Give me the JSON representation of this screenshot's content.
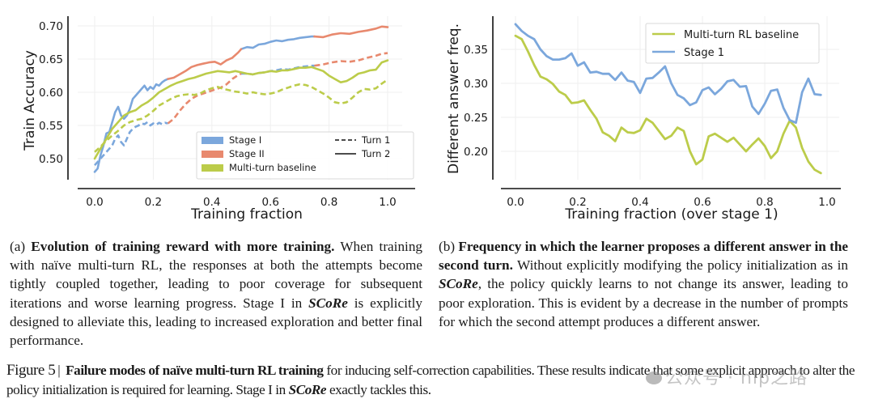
{
  "chart_data": [
    {
      "id": "a",
      "type": "line",
      "title": "",
      "xlabel": "Training fraction",
      "ylabel": "Train Accuracy",
      "xlim": [
        -0.06,
        1.03
      ],
      "ylim": [
        0.47,
        0.715
      ],
      "xticks": [
        "0.0",
        "0.2",
        "0.4",
        "0.6",
        "0.8",
        "1.0"
      ],
      "xtick_values": [
        0.0,
        0.2,
        0.4,
        0.6,
        0.8,
        1.0
      ],
      "yticks": [
        "0.50",
        "0.55",
        "0.60",
        "0.65",
        "0.70"
      ],
      "ytick_values": [
        0.5,
        0.55,
        0.6,
        0.65,
        0.7
      ],
      "grid": true,
      "legend": {
        "placement": "lower-right",
        "color_entries": [
          {
            "label": "Stage I",
            "color": "#7ba7dc"
          },
          {
            "label": "Stage II",
            "color": "#e8896e"
          },
          {
            "label": "Multi-turn baseline",
            "color": "#bccc4a"
          }
        ],
        "style_entries": [
          {
            "label": "Turn 1",
            "style": "dashed"
          },
          {
            "label": "Turn 2",
            "style": "solid"
          }
        ]
      },
      "series": [
        {
          "name": "Stage I - Turn 2",
          "color": "#7ba7dc",
          "style": "solid",
          "x": [
            0.0,
            0.01,
            0.02,
            0.03,
            0.04,
            0.05,
            0.06,
            0.07,
            0.08,
            0.09,
            0.1,
            0.11,
            0.12,
            0.13,
            0.14,
            0.15,
            0.16,
            0.17,
            0.18,
            0.19,
            0.2,
            0.21,
            0.22,
            0.23,
            0.24,
            0.25
          ],
          "y": [
            0.48,
            0.485,
            0.505,
            0.52,
            0.538,
            0.54,
            0.555,
            0.57,
            0.578,
            0.565,
            0.56,
            0.565,
            0.575,
            0.59,
            0.595,
            0.6,
            0.605,
            0.61,
            0.603,
            0.608,
            0.605,
            0.612,
            0.61,
            0.615,
            0.618,
            0.62
          ]
        },
        {
          "name": "Stage I - Turn 2 (continued)",
          "color": "#7ba7dc",
          "style": "solid",
          "x": [
            0.5,
            0.52,
            0.54,
            0.56,
            0.58,
            0.6,
            0.62,
            0.64,
            0.66,
            0.68,
            0.7,
            0.72,
            0.74,
            0.75
          ],
          "y": [
            0.665,
            0.668,
            0.667,
            0.672,
            0.673,
            0.676,
            0.678,
            0.677,
            0.679,
            0.68,
            0.682,
            0.683,
            0.684,
            0.684
          ]
        },
        {
          "name": "Stage I - Turn 1",
          "color": "#7ba7dc",
          "style": "dashed",
          "x": [
            0.0,
            0.01,
            0.02,
            0.03,
            0.04,
            0.05,
            0.06,
            0.07,
            0.08,
            0.09,
            0.1,
            0.11,
            0.12,
            0.13,
            0.14,
            0.15,
            0.16,
            0.17,
            0.18,
            0.19,
            0.2,
            0.21,
            0.22,
            0.23,
            0.24,
            0.25
          ],
          "y": [
            0.49,
            0.495,
            0.5,
            0.505,
            0.51,
            0.515,
            0.52,
            0.53,
            0.535,
            0.525,
            0.52,
            0.53,
            0.54,
            0.545,
            0.548,
            0.55,
            0.553,
            0.552,
            0.555,
            0.55,
            0.553,
            0.551,
            0.554,
            0.552,
            0.554,
            0.553
          ]
        },
        {
          "name": "Stage I - Turn 1 (continued)",
          "color": "#7ba7dc",
          "style": "dashed",
          "x": [
            0.5,
            0.52,
            0.54,
            0.56,
            0.58,
            0.6,
            0.62,
            0.64,
            0.66,
            0.68,
            0.7,
            0.72,
            0.74,
            0.75
          ],
          "y": [
            0.628,
            0.628,
            0.627,
            0.629,
            0.63,
            0.632,
            0.633,
            0.635,
            0.634,
            0.636,
            0.638,
            0.639,
            0.64,
            0.64
          ]
        },
        {
          "name": "Stage II - Turn 2",
          "color": "#e8896e",
          "style": "solid",
          "x": [
            0.25,
            0.27,
            0.29,
            0.31,
            0.33,
            0.35,
            0.37,
            0.39,
            0.41,
            0.43,
            0.45,
            0.47,
            0.49,
            0.5
          ],
          "y": [
            0.62,
            0.622,
            0.627,
            0.632,
            0.638,
            0.641,
            0.643,
            0.645,
            0.646,
            0.642,
            0.648,
            0.652,
            0.66,
            0.665
          ]
        },
        {
          "name": "Stage II - Turn 2 (continued)",
          "color": "#e8896e",
          "style": "solid",
          "x": [
            0.75,
            0.78,
            0.81,
            0.84,
            0.87,
            0.9,
            0.93,
            0.96,
            0.98,
            1.0
          ],
          "y": [
            0.684,
            0.683,
            0.687,
            0.689,
            0.688,
            0.691,
            0.693,
            0.696,
            0.699,
            0.698
          ]
        },
        {
          "name": "Stage II - Turn 1",
          "color": "#e8896e",
          "style": "dashed",
          "x": [
            0.25,
            0.27,
            0.29,
            0.31,
            0.33,
            0.35,
            0.37,
            0.39,
            0.41,
            0.43,
            0.45,
            0.47,
            0.49,
            0.5
          ],
          "y": [
            0.553,
            0.56,
            0.572,
            0.582,
            0.59,
            0.595,
            0.598,
            0.601,
            0.604,
            0.607,
            0.612,
            0.62,
            0.626,
            0.628
          ]
        },
        {
          "name": "Stage II - Turn 1 (continued)",
          "color": "#e8896e",
          "style": "dashed",
          "x": [
            0.75,
            0.78,
            0.81,
            0.84,
            0.87,
            0.9,
            0.93,
            0.96,
            0.98,
            1.0
          ],
          "y": [
            0.64,
            0.642,
            0.645,
            0.647,
            0.646,
            0.648,
            0.652,
            0.655,
            0.658,
            0.659
          ]
        },
        {
          "name": "Multi-turn baseline - Turn 2",
          "color": "#bccc4a",
          "style": "solid",
          "x": [
            0.0,
            0.02,
            0.04,
            0.06,
            0.08,
            0.1,
            0.12,
            0.14,
            0.16,
            0.18,
            0.2,
            0.22,
            0.24,
            0.26,
            0.28,
            0.3,
            0.32,
            0.34,
            0.36,
            0.38,
            0.4,
            0.42,
            0.44,
            0.46,
            0.48,
            0.5,
            0.52,
            0.54,
            0.56,
            0.58,
            0.6,
            0.62,
            0.64,
            0.66,
            0.68,
            0.7,
            0.72,
            0.74,
            0.76,
            0.78,
            0.8,
            0.82,
            0.84,
            0.86,
            0.88,
            0.9,
            0.92,
            0.94,
            0.96,
            0.98,
            1.0
          ],
          "y": [
            0.5,
            0.515,
            0.53,
            0.545,
            0.555,
            0.565,
            0.57,
            0.573,
            0.58,
            0.585,
            0.592,
            0.6,
            0.605,
            0.61,
            0.614,
            0.617,
            0.62,
            0.622,
            0.625,
            0.628,
            0.63,
            0.632,
            0.631,
            0.63,
            0.632,
            0.63,
            0.628,
            0.627,
            0.629,
            0.63,
            0.632,
            0.631,
            0.633,
            0.633,
            0.635,
            0.637,
            0.637,
            0.638,
            0.635,
            0.632,
            0.625,
            0.62,
            0.615,
            0.617,
            0.622,
            0.628,
            0.63,
            0.633,
            0.634,
            0.645,
            0.648
          ]
        },
        {
          "name": "Multi-turn baseline - Turn 1",
          "color": "#bccc4a",
          "style": "dashed",
          "x": [
            0.0,
            0.02,
            0.04,
            0.06,
            0.08,
            0.1,
            0.12,
            0.14,
            0.16,
            0.18,
            0.2,
            0.22,
            0.24,
            0.26,
            0.28,
            0.3,
            0.32,
            0.34,
            0.36,
            0.38,
            0.4,
            0.42,
            0.44,
            0.46,
            0.48,
            0.5,
            0.52,
            0.54,
            0.56,
            0.58,
            0.6,
            0.62,
            0.64,
            0.66,
            0.68,
            0.7,
            0.72,
            0.74,
            0.76,
            0.78,
            0.8,
            0.82,
            0.84,
            0.86,
            0.88,
            0.9,
            0.92,
            0.94,
            0.96,
            0.98,
            1.0
          ],
          "y": [
            0.51,
            0.518,
            0.527,
            0.535,
            0.542,
            0.55,
            0.555,
            0.558,
            0.56,
            0.565,
            0.572,
            0.58,
            0.585,
            0.59,
            0.594,
            0.596,
            0.597,
            0.596,
            0.598,
            0.603,
            0.606,
            0.608,
            0.605,
            0.603,
            0.601,
            0.6,
            0.598,
            0.6,
            0.598,
            0.597,
            0.598,
            0.6,
            0.604,
            0.607,
            0.61,
            0.612,
            0.611,
            0.608,
            0.603,
            0.598,
            0.592,
            0.585,
            0.583,
            0.585,
            0.592,
            0.6,
            0.605,
            0.604,
            0.606,
            0.613,
            0.619
          ]
        }
      ]
    },
    {
      "id": "b",
      "type": "line",
      "title": "",
      "xlabel": "Training fraction (over stage 1)",
      "ylabel": "Different answer freq.",
      "xlim": [
        -0.045,
        1.03
      ],
      "ylim": [
        0.158,
        0.395
      ],
      "xticks": [
        "0.0",
        "0.2",
        "0.4",
        "0.6",
        "0.8",
        "1.0"
      ],
      "xtick_values": [
        0.0,
        0.2,
        0.4,
        0.6,
        0.8,
        1.0
      ],
      "yticks": [
        "0.20",
        "0.25",
        "0.30",
        "0.35"
      ],
      "ytick_values": [
        0.2,
        0.25,
        0.3,
        0.35
      ],
      "grid": true,
      "legend": {
        "placement": "upper-right",
        "entries": [
          {
            "label": "Multi-turn RL baseline",
            "color": "#bccc4a"
          },
          {
            "label": "Stage 1",
            "color": "#7ba7dc"
          }
        ]
      },
      "series": [
        {
          "name": "Multi-turn RL baseline",
          "color": "#bccc4a",
          "style": "solid",
          "x": [
            0.0,
            0.02,
            0.04,
            0.06,
            0.08,
            0.1,
            0.12,
            0.14,
            0.16,
            0.18,
            0.2,
            0.22,
            0.24,
            0.26,
            0.28,
            0.3,
            0.32,
            0.34,
            0.36,
            0.38,
            0.4,
            0.42,
            0.44,
            0.46,
            0.48,
            0.5,
            0.52,
            0.54,
            0.56,
            0.58,
            0.6,
            0.62,
            0.64,
            0.66,
            0.68,
            0.7,
            0.72,
            0.74,
            0.76,
            0.78,
            0.8,
            0.82,
            0.84,
            0.86,
            0.88,
            0.9,
            0.92,
            0.94,
            0.96,
            0.98
          ],
          "y": [
            0.37,
            0.365,
            0.347,
            0.327,
            0.31,
            0.306,
            0.299,
            0.288,
            0.283,
            0.271,
            0.272,
            0.275,
            0.261,
            0.248,
            0.228,
            0.223,
            0.215,
            0.235,
            0.228,
            0.227,
            0.231,
            0.248,
            0.242,
            0.23,
            0.218,
            0.223,
            0.235,
            0.23,
            0.2,
            0.181,
            0.188,
            0.222,
            0.226,
            0.22,
            0.214,
            0.22,
            0.21,
            0.2,
            0.21,
            0.219,
            0.208,
            0.19,
            0.2,
            0.226,
            0.245,
            0.235,
            0.205,
            0.185,
            0.173,
            0.168
          ]
        },
        {
          "name": "Stage 1",
          "color": "#7ba7dc",
          "style": "solid",
          "x": [
            0.0,
            0.02,
            0.04,
            0.06,
            0.08,
            0.1,
            0.12,
            0.14,
            0.16,
            0.18,
            0.2,
            0.22,
            0.24,
            0.26,
            0.28,
            0.3,
            0.32,
            0.34,
            0.36,
            0.38,
            0.4,
            0.42,
            0.44,
            0.46,
            0.48,
            0.5,
            0.52,
            0.54,
            0.56,
            0.58,
            0.6,
            0.62,
            0.64,
            0.66,
            0.68,
            0.7,
            0.72,
            0.74,
            0.76,
            0.78,
            0.8,
            0.82,
            0.84,
            0.86,
            0.88,
            0.9,
            0.92,
            0.94,
            0.96,
            0.98
          ],
          "y": [
            0.387,
            0.377,
            0.37,
            0.365,
            0.35,
            0.34,
            0.335,
            0.335,
            0.337,
            0.344,
            0.326,
            0.331,
            0.316,
            0.317,
            0.314,
            0.314,
            0.305,
            0.316,
            0.304,
            0.302,
            0.286,
            0.307,
            0.308,
            0.316,
            0.325,
            0.3,
            0.283,
            0.278,
            0.268,
            0.272,
            0.29,
            0.294,
            0.284,
            0.292,
            0.303,
            0.305,
            0.295,
            0.296,
            0.266,
            0.255,
            0.27,
            0.289,
            0.291,
            0.264,
            0.246,
            0.242,
            0.287,
            0.307,
            0.284,
            0.283
          ]
        }
      ]
    }
  ],
  "captions": {
    "a": {
      "label": "(a)",
      "bold": "Evolution of training reward with more training.",
      "text1": "When training with naïve multi-turn RL, the responses at both the attempts become tightly coupled together, leading to poor coverage for subsequent iterations and worse learning progress. Stage I in",
      "italic": "SCoRe",
      "text2": "is explicitly designed to alleviate this, leading to increased exploration and better final performance."
    },
    "b": {
      "label": "(b)",
      "bold": "Frequency in which the learner proposes a different answer in the second turn.",
      "text1": "Without explicitly modifying the policy initialization as in",
      "italic": "SCoRe",
      "text2": ", the policy quickly learns to not change its answer, leading to poor exploration. This is evident by a decrease in the number of prompts for which the second attempt produces a different answer."
    }
  },
  "figure_caption": {
    "label": "Figure 5",
    "separator": "|",
    "bold": "Failure modes of naïve multi-turn RL training",
    "text1": "for inducing self-correction capabilities. These results indicate that some explicit approach to alter the policy initialization is required for learning. Stage I in",
    "italic": "SCoRe",
    "text2": "exactly tackles this."
  },
  "watermark": {
    "text": "公众号 · nlp之路"
  }
}
